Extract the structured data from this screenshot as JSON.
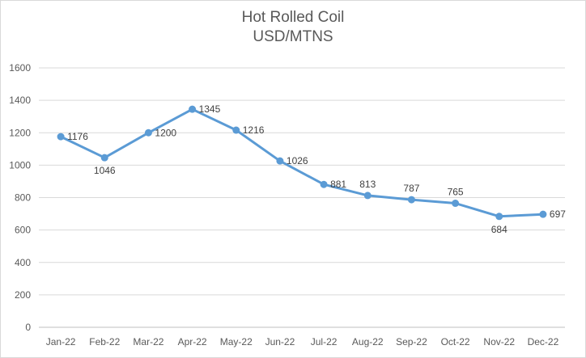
{
  "chart_data": {
    "type": "line",
    "title": "Hot Rolled Coil",
    "subtitle": "USD/MTNS",
    "categories": [
      "Jan-22",
      "Feb-22",
      "Mar-22",
      "Apr-22",
      "May-22",
      "Jun-22",
      "Jul-22",
      "Aug-22",
      "Sep-22",
      "Oct-22",
      "Nov-22",
      "Dec-22"
    ],
    "series": [
      {
        "values": [
          1176,
          1046,
          1200,
          1345,
          1216,
          1026,
          881,
          813,
          787,
          765,
          684,
          697
        ],
        "color": "#5b9bd5"
      }
    ],
    "ylim": [
      0,
      1600
    ],
    "yticks": [
      0,
      200,
      400,
      600,
      800,
      1000,
      1200,
      1400,
      1600
    ],
    "grid": true,
    "legend": "none"
  }
}
